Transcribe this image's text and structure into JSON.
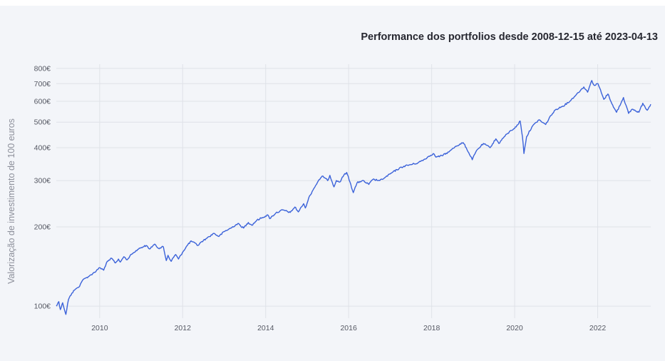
{
  "chart_data": {
    "type": "line",
    "title": "Performance dos portfolios desde 2008-12-15 até 2023-04-13",
    "ylabel": "Valorização de investimento de 100 euros",
    "xlabel": "",
    "x_range": [
      "2008-12-15",
      "2023-04-13"
    ],
    "y_scale": "log",
    "y_range": [
      90,
      830
    ],
    "y_ticks": [
      {
        "value": 100,
        "label": "100€"
      },
      {
        "value": 200,
        "label": "200€"
      },
      {
        "value": 300,
        "label": "300€"
      },
      {
        "value": 400,
        "label": "400€"
      },
      {
        "value": 500,
        "label": "500€"
      },
      {
        "value": 600,
        "label": "600€"
      },
      {
        "value": 700,
        "label": "700€"
      },
      {
        "value": 800,
        "label": "800€"
      }
    ],
    "x_ticks": [
      {
        "value": "2010-01-01",
        "label": "2010"
      },
      {
        "value": "2012-01-01",
        "label": "2012"
      },
      {
        "value": "2014-01-01",
        "label": "2014"
      },
      {
        "value": "2016-01-01",
        "label": "2016"
      },
      {
        "value": "2018-01-01",
        "label": "2018"
      },
      {
        "value": "2020-01-01",
        "label": "2020"
      },
      {
        "value": "2022-01-01",
        "label": "2022"
      }
    ],
    "grid": true,
    "line_color": "#3b62d9",
    "series": [
      {
        "points": [
          [
            "2008-12-15",
            100
          ],
          [
            "2009-01-06",
            104
          ],
          [
            "2009-01-20",
            97
          ],
          [
            "2009-02-09",
            103
          ],
          [
            "2009-03-09",
            93
          ],
          [
            "2009-04-01",
            106
          ],
          [
            "2009-05-01",
            112
          ],
          [
            "2009-06-01",
            116
          ],
          [
            "2009-07-01",
            118
          ],
          [
            "2009-08-01",
            125
          ],
          [
            "2009-09-01",
            128
          ],
          [
            "2009-10-01",
            130
          ],
          [
            "2009-11-01",
            133
          ],
          [
            "2009-12-01",
            136
          ],
          [
            "2010-01-01",
            140
          ],
          [
            "2010-02-05",
            137
          ],
          [
            "2010-03-01",
            146
          ],
          [
            "2010-04-15",
            152
          ],
          [
            "2010-05-20",
            146
          ],
          [
            "2010-06-15",
            151
          ],
          [
            "2010-07-01",
            147
          ],
          [
            "2010-08-01",
            154
          ],
          [
            "2010-09-01",
            150
          ],
          [
            "2010-10-01",
            157
          ],
          [
            "2010-11-01",
            160
          ],
          [
            "2010-12-01",
            164
          ],
          [
            "2011-01-01",
            167
          ],
          [
            "2011-02-15",
            170
          ],
          [
            "2011-03-15",
            165
          ],
          [
            "2011-04-30",
            172
          ],
          [
            "2011-06-01",
            166
          ],
          [
            "2011-07-15",
            168
          ],
          [
            "2011-08-10",
            149
          ],
          [
            "2011-08-25",
            156
          ],
          [
            "2011-09-22",
            148
          ],
          [
            "2011-10-05",
            152
          ],
          [
            "2011-11-01",
            157
          ],
          [
            "2011-11-25",
            151
          ],
          [
            "2011-12-31",
            160
          ],
          [
            "2012-02-01",
            168
          ],
          [
            "2012-03-15",
            177
          ],
          [
            "2012-05-15",
            170
          ],
          [
            "2012-06-10",
            175
          ],
          [
            "2012-08-01",
            181
          ],
          [
            "2012-10-01",
            189
          ],
          [
            "2012-11-15",
            184
          ],
          [
            "2013-01-01",
            192
          ],
          [
            "2013-03-01",
            198
          ],
          [
            "2013-05-01",
            206
          ],
          [
            "2013-06-20",
            198
          ],
          [
            "2013-08-01",
            208
          ],
          [
            "2013-09-01",
            203
          ],
          [
            "2013-10-15",
            212
          ],
          [
            "2013-12-01",
            217
          ],
          [
            "2014-01-20",
            222
          ],
          [
            "2014-02-05",
            215
          ],
          [
            "2014-04-01",
            226
          ],
          [
            "2014-06-01",
            232
          ],
          [
            "2014-08-05",
            227
          ],
          [
            "2014-09-15",
            238
          ],
          [
            "2014-10-15",
            228
          ],
          [
            "2014-12-01",
            245
          ],
          [
            "2014-12-16",
            236
          ],
          [
            "2015-01-15",
            258
          ],
          [
            "2015-03-01",
            280
          ],
          [
            "2015-04-15",
            302
          ],
          [
            "2015-05-20",
            312
          ],
          [
            "2015-06-30",
            300
          ],
          [
            "2015-07-20",
            314
          ],
          [
            "2015-08-25",
            284
          ],
          [
            "2015-09-15",
            300
          ],
          [
            "2015-10-15",
            296
          ],
          [
            "2015-11-20",
            315
          ],
          [
            "2015-12-15",
            322
          ],
          [
            "2016-01-20",
            290
          ],
          [
            "2016-02-11",
            270
          ],
          [
            "2016-03-15",
            294
          ],
          [
            "2016-05-01",
            300
          ],
          [
            "2016-06-27",
            290
          ],
          [
            "2016-08-01",
            303
          ],
          [
            "2016-10-01",
            300
          ],
          [
            "2016-11-15",
            308
          ],
          [
            "2017-01-01",
            318
          ],
          [
            "2017-03-01",
            330
          ],
          [
            "2017-05-01",
            340
          ],
          [
            "2017-07-01",
            345
          ],
          [
            "2017-09-01",
            350
          ],
          [
            "2017-11-01",
            362
          ],
          [
            "2018-01-15",
            380
          ],
          [
            "2018-02-08",
            368
          ],
          [
            "2018-04-01",
            373
          ],
          [
            "2018-06-01",
            385
          ],
          [
            "2018-08-01",
            405
          ],
          [
            "2018-10-05",
            418
          ],
          [
            "2018-11-01",
            400
          ],
          [
            "2018-12-24",
            360
          ],
          [
            "2019-01-31",
            390
          ],
          [
            "2019-04-01",
            415
          ],
          [
            "2019-05-30",
            400
          ],
          [
            "2019-07-20",
            432
          ],
          [
            "2019-08-15",
            415
          ],
          [
            "2019-10-01",
            440
          ],
          [
            "2019-12-01",
            465
          ],
          [
            "2020-01-15",
            480
          ],
          [
            "2020-02-19",
            505
          ],
          [
            "2020-03-10",
            440
          ],
          [
            "2020-03-23",
            380
          ],
          [
            "2020-04-15",
            440
          ],
          [
            "2020-06-01",
            480
          ],
          [
            "2020-08-01",
            510
          ],
          [
            "2020-09-30",
            490
          ],
          [
            "2020-11-15",
            530
          ],
          [
            "2021-01-01",
            560
          ],
          [
            "2021-03-01",
            575
          ],
          [
            "2021-05-01",
            600
          ],
          [
            "2021-07-01",
            640
          ],
          [
            "2021-09-01",
            680
          ],
          [
            "2021-10-04",
            650
          ],
          [
            "2021-11-10",
            720
          ],
          [
            "2021-12-01",
            690
          ],
          [
            "2022-01-04",
            700
          ],
          [
            "2022-02-24",
            610
          ],
          [
            "2022-04-01",
            640
          ],
          [
            "2022-05-20",
            570
          ],
          [
            "2022-06-16",
            545
          ],
          [
            "2022-08-16",
            620
          ],
          [
            "2022-09-30",
            540
          ],
          [
            "2022-11-01",
            560
          ],
          [
            "2022-12-30",
            545
          ],
          [
            "2023-02-02",
            590
          ],
          [
            "2023-03-13",
            555
          ],
          [
            "2023-04-13",
            585
          ]
        ]
      }
    ]
  }
}
